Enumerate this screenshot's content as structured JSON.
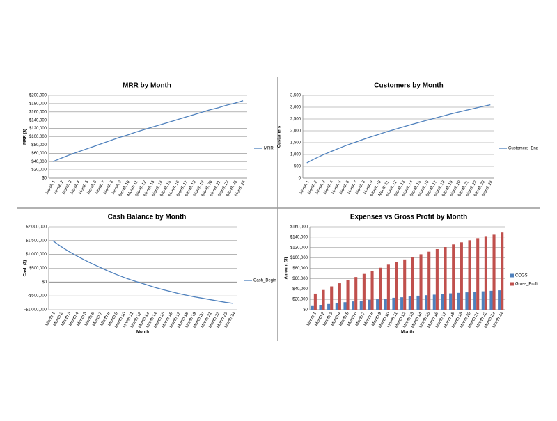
{
  "chart_data": [
    {
      "type": "line",
      "title": "MRR by Month",
      "y_label": "MRR ($)",
      "legend": "right",
      "grid": true,
      "categories": [
        "Month 1",
        "Month 2",
        "Month 3",
        "Month 4",
        "Month 5",
        "Month 6",
        "Month 7",
        "Month 8",
        "Month 9",
        "Month 10",
        "Month 11",
        "Month 12",
        "Month 13",
        "Month 14",
        "Month 15",
        "Month 16",
        "Month 17",
        "Month 18",
        "Month 19",
        "Month 20",
        "Month 21",
        "Month 22",
        "Month 23",
        "Month 24"
      ],
      "series": [
        {
          "name": "MRR",
          "color": "#4f81bd",
          "values": [
            40000,
            48000,
            56000,
            63000,
            70000,
            77000,
            84000,
            91000,
            98000,
            104000,
            111000,
            117000,
            123000,
            129000,
            135000,
            141000,
            147000,
            153000,
            159000,
            165000,
            170000,
            176000,
            181000,
            187000
          ]
        }
      ],
      "ylim": [
        0,
        200000
      ],
      "yticks": [
        {
          "value": 0,
          "label": "$0"
        },
        {
          "value": 20000,
          "label": "$20,000"
        },
        {
          "value": 40000,
          "label": "$40,000"
        },
        {
          "value": 60000,
          "label": "$60,000"
        },
        {
          "value": 80000,
          "label": "$80,000"
        },
        {
          "value": 100000,
          "label": "$100,000"
        },
        {
          "value": 120000,
          "label": "$120,000"
        },
        {
          "value": 140000,
          "label": "$140,000"
        },
        {
          "value": 160000,
          "label": "$160,000"
        },
        {
          "value": 180000,
          "label": "$180,000"
        },
        {
          "value": 200000,
          "label": "$200,000"
        }
      ]
    },
    {
      "type": "line",
      "title": "Customers by Month",
      "y_label": "Customers",
      "legend": "right",
      "grid": true,
      "categories": [
        "Month 1",
        "Month 2",
        "Month 3",
        "Month 4",
        "Month 5",
        "Month 6",
        "Month 7",
        "Month 8",
        "Month 9",
        "Month 10",
        "Month 11",
        "Month 12",
        "Month 13",
        "Month 14",
        "Month 15",
        "Month 16",
        "Month 17",
        "Month 18",
        "Month 19",
        "Month 20",
        "Month 21",
        "Month 22",
        "Month 23",
        "Month 24"
      ],
      "series": [
        {
          "name": "Customers_End",
          "color": "#4f81bd",
          "values": [
            650,
            820,
            980,
            1120,
            1260,
            1390,
            1510,
            1630,
            1740,
            1850,
            1960,
            2060,
            2160,
            2260,
            2350,
            2440,
            2530,
            2620,
            2710,
            2790,
            2870,
            2950,
            3030,
            3100
          ]
        }
      ],
      "ylim": [
        0,
        3500
      ],
      "yticks": [
        0,
        500,
        {
          "value": 1000,
          "label": "1,000"
        },
        {
          "value": 1500,
          "label": "1,500"
        },
        {
          "value": 2000,
          "label": "2,000"
        },
        {
          "value": 2500,
          "label": "2,500"
        },
        {
          "value": 3000,
          "label": "3,000"
        },
        {
          "value": 3500,
          "label": "3,500"
        }
      ]
    },
    {
      "type": "line",
      "title": "Cash Balance by Month",
      "y_label": "Cash ($)",
      "x_label": "Month",
      "legend": "right",
      "grid": true,
      "categories": [
        "Month 1",
        "Month 2",
        "Month 3",
        "Month 4",
        "Month 5",
        "Month 6",
        "Month 7",
        "Month 8",
        "Month 9",
        "Month 10",
        "Month 11",
        "Month 12",
        "Month 13",
        "Month 14",
        "Month 15",
        "Month 16",
        "Month 17",
        "Month 18",
        "Month 19",
        "Month 20",
        "Month 21",
        "Month 22",
        "Month 23",
        "Month 24"
      ],
      "series": [
        {
          "name": "Cash_Begin",
          "color": "#4f81bd",
          "values": [
            1500000,
            1300000,
            1120000,
            960000,
            810000,
            670000,
            540000,
            410000,
            290000,
            180000,
            80000,
            -10000,
            -100000,
            -190000,
            -270000,
            -340000,
            -410000,
            -470000,
            -530000,
            -580000,
            -630000,
            -680000,
            -730000,
            -770000
          ]
        }
      ],
      "ylim": [
        -1000000,
        2000000
      ],
      "yticks": [
        {
          "value": -1000000,
          "label": "-$1,000,000"
        },
        {
          "value": -500000,
          "label": "-$500,000"
        },
        {
          "value": 0,
          "label": "$0"
        },
        {
          "value": 500000,
          "label": "$500,000"
        },
        {
          "value": 1000000,
          "label": "$1,000,000"
        },
        {
          "value": 1500000,
          "label": "$1,500,000"
        },
        {
          "value": 2000000,
          "label": "$2,000,000"
        }
      ]
    },
    {
      "type": "bar",
      "title": "Expenses vs Gross Profit by Month",
      "y_label": "Amount ($)",
      "x_label": "Month",
      "legend": "right",
      "grid": true,
      "categories": [
        "Month 1",
        "Month 2",
        "Month 3",
        "Month 4",
        "Month 5",
        "Month 6",
        "Month 7",
        "Month 8",
        "Month 9",
        "Month 10",
        "Month 11",
        "Month 12",
        "Month 13",
        "Month 14",
        "Month 15",
        "Month 16",
        "Month 17",
        "Month 18",
        "Month 19",
        "Month 20",
        "Month 21",
        "Month 22",
        "Month 23",
        "Month 24"
      ],
      "series": [
        {
          "name": "COGS",
          "color": "#4f81bd",
          "values": [
            7000,
            9000,
            11000,
            13000,
            14500,
            16000,
            17500,
            19000,
            20000,
            21500,
            23000,
            24000,
            25500,
            27000,
            28000,
            29000,
            30500,
            31500,
            32500,
            33500,
            34500,
            35500,
            36500,
            37500
          ]
        },
        {
          "name": "Gross_Profit",
          "color": "#c0504d",
          "values": [
            31000,
            38000,
            45000,
            51000,
            57000,
            63000,
            69000,
            75000,
            81000,
            87000,
            92000,
            97000,
            102000,
            107000,
            112000,
            117000,
            121000,
            126000,
            130000,
            134000,
            138000,
            142000,
            146000,
            149000
          ]
        }
      ],
      "ylim": [
        0,
        160000
      ],
      "yticks": [
        {
          "value": 0,
          "label": "$0"
        },
        {
          "value": 20000,
          "label": "$20,000"
        },
        {
          "value": 40000,
          "label": "$40,000"
        },
        {
          "value": 60000,
          "label": "$60,000"
        },
        {
          "value": 80000,
          "label": "$80,000"
        },
        {
          "value": 100000,
          "label": "$100,000"
        },
        {
          "value": 120000,
          "label": "$120,000"
        },
        {
          "value": 140000,
          "label": "$140,000"
        },
        {
          "value": 160000,
          "label": "$160,000"
        }
      ]
    }
  ]
}
